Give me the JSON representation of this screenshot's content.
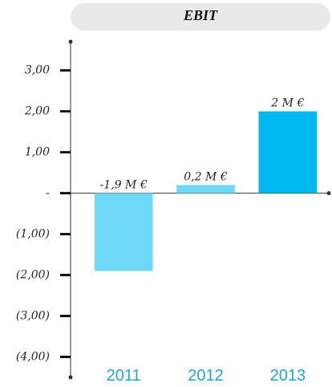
{
  "chart_data": {
    "type": "bar",
    "title": "EBIT",
    "categories": [
      "2011",
      "2012",
      "2013"
    ],
    "values": [
      -1.9,
      0.2,
      2
    ],
    "value_labels": [
      "-1,9 M €",
      "0,2 M €",
      "2 M €"
    ],
    "colors": [
      "#6fd8f7",
      "#6fd8f7",
      "#00b9f1"
    ],
    "ylim": [
      -4.5,
      3.7
    ],
    "yticks": [
      {
        "value": 3,
        "label": "3,00"
      },
      {
        "value": 2,
        "label": "2,00"
      },
      {
        "value": 1,
        "label": "1,00"
      },
      {
        "value": 0,
        "label": "-"
      },
      {
        "value": -1,
        "label": "(1,00)"
      },
      {
        "value": -2,
        "label": "(2,00)"
      },
      {
        "value": -3,
        "label": "(3,00)"
      },
      {
        "value": -4,
        "label": "(4,00)"
      }
    ],
    "grid": false
  }
}
